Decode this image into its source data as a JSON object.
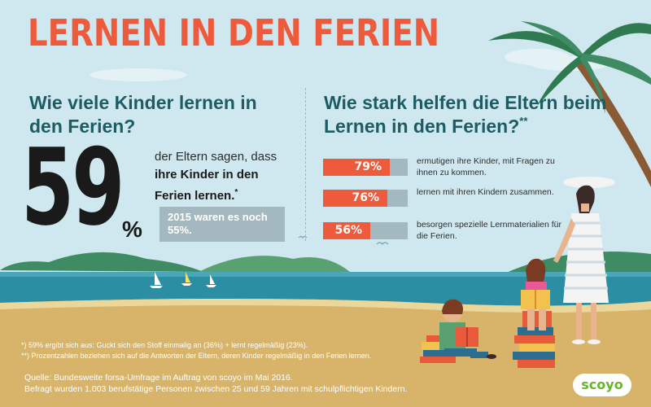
{
  "title": "LERNEN IN DEN FERIEN",
  "left": {
    "question": "Wie viele Kinder lernen in den Ferien?",
    "big_number": "59",
    "big_unit": "%",
    "line1": "der Eltern sagen, dass",
    "bold_text": "ihre Kinder in den Ferien lernen.",
    "bold_mark": "*",
    "note_2015": "2015 waren es noch 55%."
  },
  "right": {
    "question": "Wie stark helfen die Eltern beim Lernen in den Ferien?",
    "question_mark": "**"
  },
  "chart_data": {
    "type": "bar",
    "title": "Wie stark helfen die Eltern beim Lernen in den Ferien?**",
    "ylim": [
      0,
      100
    ],
    "categories": [
      "ermutigen ihre Kinder, mit Fragen zu ihnen zu kommen.",
      "lernen mit ihren Kindern zusammen.",
      "besorgen spezielle Lernmaterialien für die Ferien."
    ],
    "values": [
      79,
      76,
      56
    ],
    "value_labels": [
      "79%",
      "76%",
      "56%"
    ],
    "colors": {
      "fill": "#ee5b3c",
      "track": "#a3b8bf"
    }
  },
  "footnotes": [
    "*) 59% ergibt sich aus: Guckt sich den Stoff einmalig an (36%) + lernt regelmäßig (23%).",
    "**) Prozentzahlen beziehen sich auf die Antworten der Eltern, deren Kinder regelmäßig in den Ferien lernen."
  ],
  "source": [
    "Quelle: Bundesweite forsa-Umfrage im Auftrag von scoyo im Mai 2016.",
    "Befragt wurden 1.003 berufstätige Personen zwischen 25 und 59 Jahren mit schulpflichtigen Kindern."
  ],
  "logo": "scoyo",
  "colors": {
    "accent": "#ee5b3c",
    "heading": "#1d5c63",
    "sky": "#cfe8ef",
    "sea": "#2b8ea3",
    "sand": "#d7b46a"
  }
}
